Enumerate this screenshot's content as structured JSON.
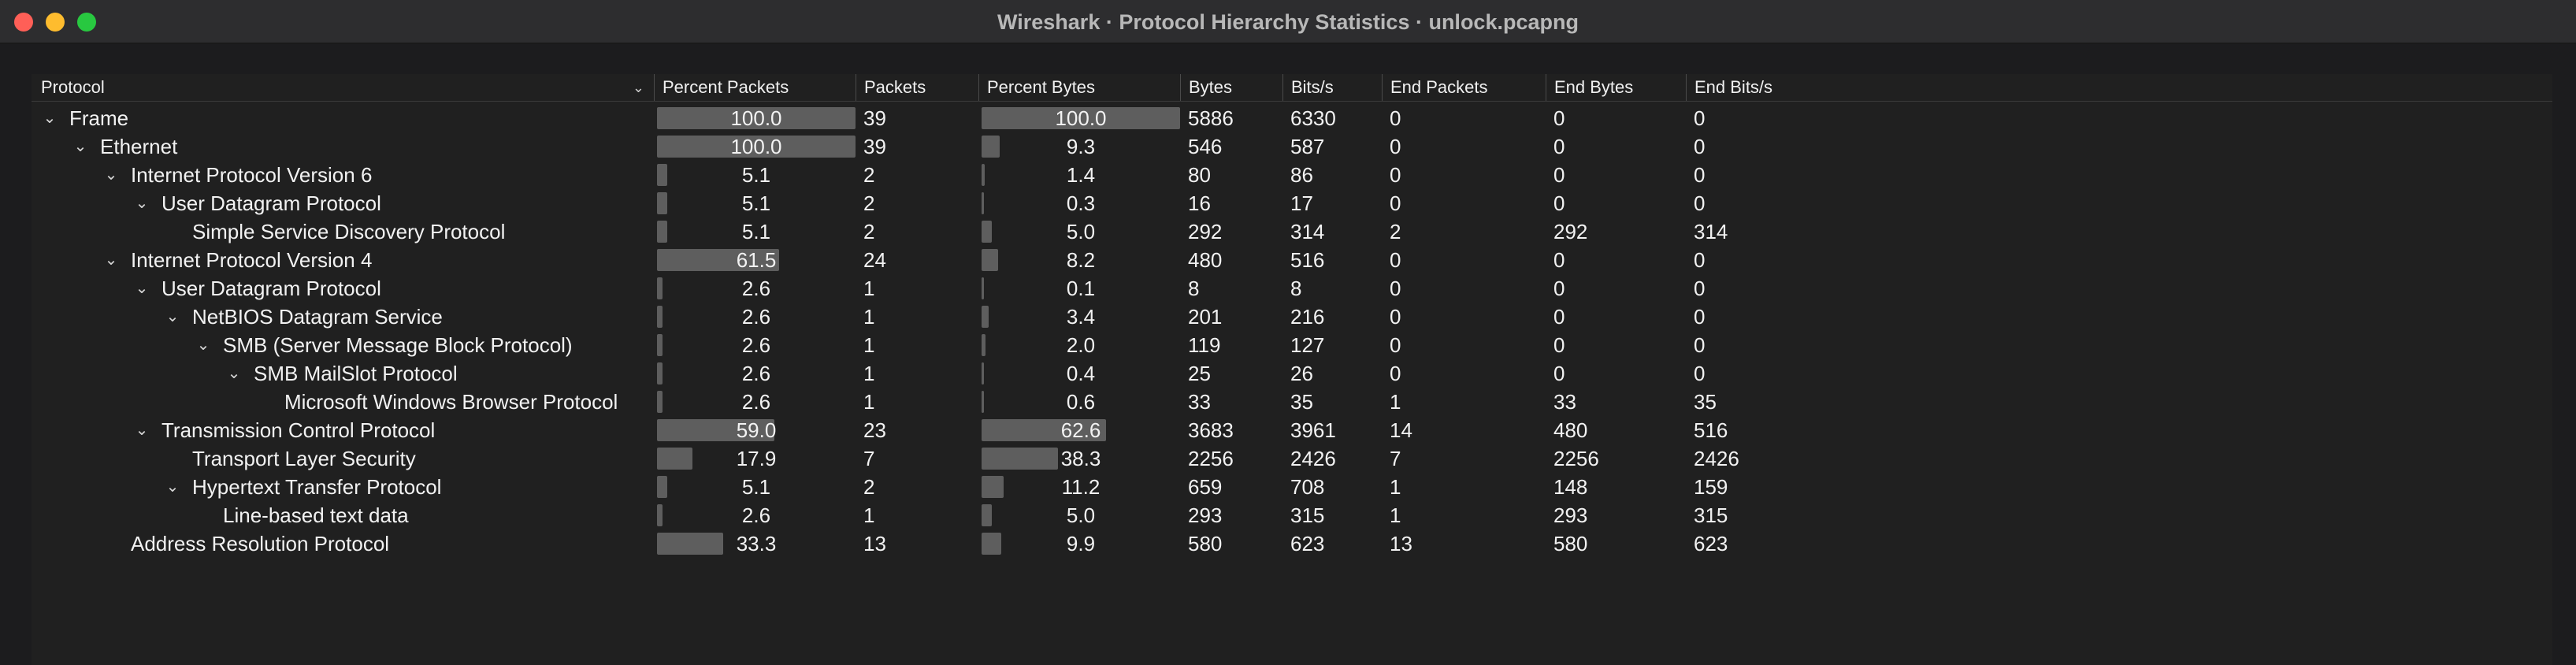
{
  "window": {
    "title": "Wireshark · Protocol Hierarchy Statistics · unlock.pcapng"
  },
  "columns": [
    "Protocol",
    "Percent Packets",
    "Packets",
    "Percent Bytes",
    "Bytes",
    "Bits/s",
    "End Packets",
    "End Bytes",
    "End Bits/s"
  ],
  "colors": {
    "bar": "#5e5e5e",
    "background": "#202020"
  },
  "rows": [
    {
      "name": "Frame",
      "level": 0,
      "expand": true,
      "pct_packets": "100.0",
      "packets": "39",
      "pct_bytes": "100.0",
      "bytes": "5886",
      "bits": "6330",
      "end_packets": "0",
      "end_bytes": "0",
      "end_bits": "0"
    },
    {
      "name": "Ethernet",
      "level": 1,
      "expand": true,
      "pct_packets": "100.0",
      "packets": "39",
      "pct_bytes": "9.3",
      "bytes": "546",
      "bits": "587",
      "end_packets": "0",
      "end_bytes": "0",
      "end_bits": "0"
    },
    {
      "name": "Internet Protocol Version 6",
      "level": 2,
      "expand": true,
      "pct_packets": "5.1",
      "packets": "2",
      "pct_bytes": "1.4",
      "bytes": "80",
      "bits": "86",
      "end_packets": "0",
      "end_bytes": "0",
      "end_bits": "0"
    },
    {
      "name": "User Datagram Protocol",
      "level": 3,
      "expand": true,
      "pct_packets": "5.1",
      "packets": "2",
      "pct_bytes": "0.3",
      "bytes": "16",
      "bits": "17",
      "end_packets": "0",
      "end_bytes": "0",
      "end_bits": "0"
    },
    {
      "name": "Simple Service Discovery Protocol",
      "level": 4,
      "expand": false,
      "pct_packets": "5.1",
      "packets": "2",
      "pct_bytes": "5.0",
      "bytes": "292",
      "bits": "314",
      "end_packets": "2",
      "end_bytes": "292",
      "end_bits": "314"
    },
    {
      "name": "Internet Protocol Version 4",
      "level": 2,
      "expand": true,
      "pct_packets": "61.5",
      "packets": "24",
      "pct_bytes": "8.2",
      "bytes": "480",
      "bits": "516",
      "end_packets": "0",
      "end_bytes": "0",
      "end_bits": "0"
    },
    {
      "name": "User Datagram Protocol",
      "level": 3,
      "expand": true,
      "pct_packets": "2.6",
      "packets": "1",
      "pct_bytes": "0.1",
      "bytes": "8",
      "bits": "8",
      "end_packets": "0",
      "end_bytes": "0",
      "end_bits": "0"
    },
    {
      "name": "NetBIOS Datagram Service",
      "level": 4,
      "expand": true,
      "pct_packets": "2.6",
      "packets": "1",
      "pct_bytes": "3.4",
      "bytes": "201",
      "bits": "216",
      "end_packets": "0",
      "end_bytes": "0",
      "end_bits": "0"
    },
    {
      "name": "SMB (Server Message Block Protocol)",
      "level": 5,
      "expand": true,
      "pct_packets": "2.6",
      "packets": "1",
      "pct_bytes": "2.0",
      "bytes": "119",
      "bits": "127",
      "end_packets": "0",
      "end_bytes": "0",
      "end_bits": "0"
    },
    {
      "name": "SMB MailSlot Protocol",
      "level": 6,
      "expand": true,
      "pct_packets": "2.6",
      "packets": "1",
      "pct_bytes": "0.4",
      "bytes": "25",
      "bits": "26",
      "end_packets": "0",
      "end_bytes": "0",
      "end_bits": "0"
    },
    {
      "name": "Microsoft Windows Browser Protocol",
      "level": 7,
      "expand": false,
      "pct_packets": "2.6",
      "packets": "1",
      "pct_bytes": "0.6",
      "bytes": "33",
      "bits": "35",
      "end_packets": "1",
      "end_bytes": "33",
      "end_bits": "35"
    },
    {
      "name": "Transmission Control Protocol",
      "level": 3,
      "expand": true,
      "pct_packets": "59.0",
      "packets": "23",
      "pct_bytes": "62.6",
      "bytes": "3683",
      "bits": "3961",
      "end_packets": "14",
      "end_bytes": "480",
      "end_bits": "516"
    },
    {
      "name": "Transport Layer Security",
      "level": 4,
      "expand": false,
      "pct_packets": "17.9",
      "packets": "7",
      "pct_bytes": "38.3",
      "bytes": "2256",
      "bits": "2426",
      "end_packets": "7",
      "end_bytes": "2256",
      "end_bits": "2426"
    },
    {
      "name": "Hypertext Transfer Protocol",
      "level": 4,
      "expand": true,
      "pct_packets": "5.1",
      "packets": "2",
      "pct_bytes": "11.2",
      "bytes": "659",
      "bits": "708",
      "end_packets": "1",
      "end_bytes": "148",
      "end_bits": "159"
    },
    {
      "name": "Line-based text data",
      "level": 5,
      "expand": false,
      "pct_packets": "2.6",
      "packets": "1",
      "pct_bytes": "5.0",
      "bytes": "293",
      "bits": "315",
      "end_packets": "1",
      "end_bytes": "293",
      "end_bits": "315"
    },
    {
      "name": "Address Resolution Protocol",
      "level": 2,
      "expand": false,
      "pct_packets": "33.3",
      "packets": "13",
      "pct_bytes": "9.9",
      "bytes": "580",
      "bits": "623",
      "end_packets": "13",
      "end_bytes": "580",
      "end_bits": "623"
    }
  ]
}
